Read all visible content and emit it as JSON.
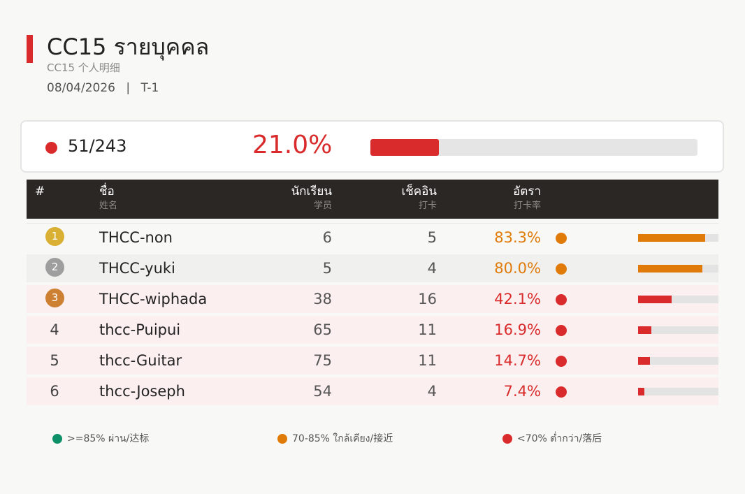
{
  "header": {
    "title": "CC15  รายบุคคล",
    "subtitle": "CC15  个人明细",
    "date": "08/04/2026",
    "separator": "|",
    "period": "T-1"
  },
  "summary": {
    "count": "51/243",
    "percent_text": "21.0%",
    "percent_value": 21.0,
    "status_color": "#d92b2b"
  },
  "table": {
    "columns": [
      {
        "label": "#",
        "sub": ""
      },
      {
        "label": "ชื่อ",
        "sub": "姓名"
      },
      {
        "label": "นักเรียน",
        "sub": "学员"
      },
      {
        "label": "เช็คอิน",
        "sub": "打卡"
      },
      {
        "label": "อัตรา",
        "sub": "打卡率"
      }
    ],
    "rows": [
      {
        "rank": "1",
        "name": "THCC-non",
        "students": "6",
        "checkin": "5",
        "rate_text": "83.3%",
        "rate": 83.3,
        "status_color": "#e07b0a",
        "medal_color": "#d9b034"
      },
      {
        "rank": "2",
        "name": "THCC-yuki",
        "students": "5",
        "checkin": "4",
        "rate_text": "80.0%",
        "rate": 80.0,
        "status_color": "#e07b0a",
        "medal_color": "#9e9e9e"
      },
      {
        "rank": "3",
        "name": "THCC-wiphada",
        "students": "38",
        "checkin": "16",
        "rate_text": "42.1%",
        "rate": 42.1,
        "status_color": "#d92b2b",
        "medal_color": "#cd7f32"
      },
      {
        "rank": "4",
        "name": "thcc-Puipui",
        "students": "65",
        "checkin": "11",
        "rate_text": "16.9%",
        "rate": 16.9,
        "status_color": "#d92b2b",
        "medal_color": ""
      },
      {
        "rank": "5",
        "name": "thcc-Guitar",
        "students": "75",
        "checkin": "11",
        "rate_text": "14.7%",
        "rate": 14.7,
        "status_color": "#d92b2b",
        "medal_color": ""
      },
      {
        "rank": "6",
        "name": "thcc-Joseph",
        "students": "54",
        "checkin": "4",
        "rate_text": "7.4%",
        "rate": 7.4,
        "status_color": "#d92b2b",
        "medal_color": ""
      }
    ]
  },
  "legend": [
    {
      "label": ">=85% ผ่าน/达标",
      "color": "#0d9068"
    },
    {
      "label": "70-85% ใกล้เคียง/接近",
      "color": "#e07b0a"
    },
    {
      "label": "<70% ต่ำกว่า/落后",
      "color": "#d92b2b"
    }
  ]
}
